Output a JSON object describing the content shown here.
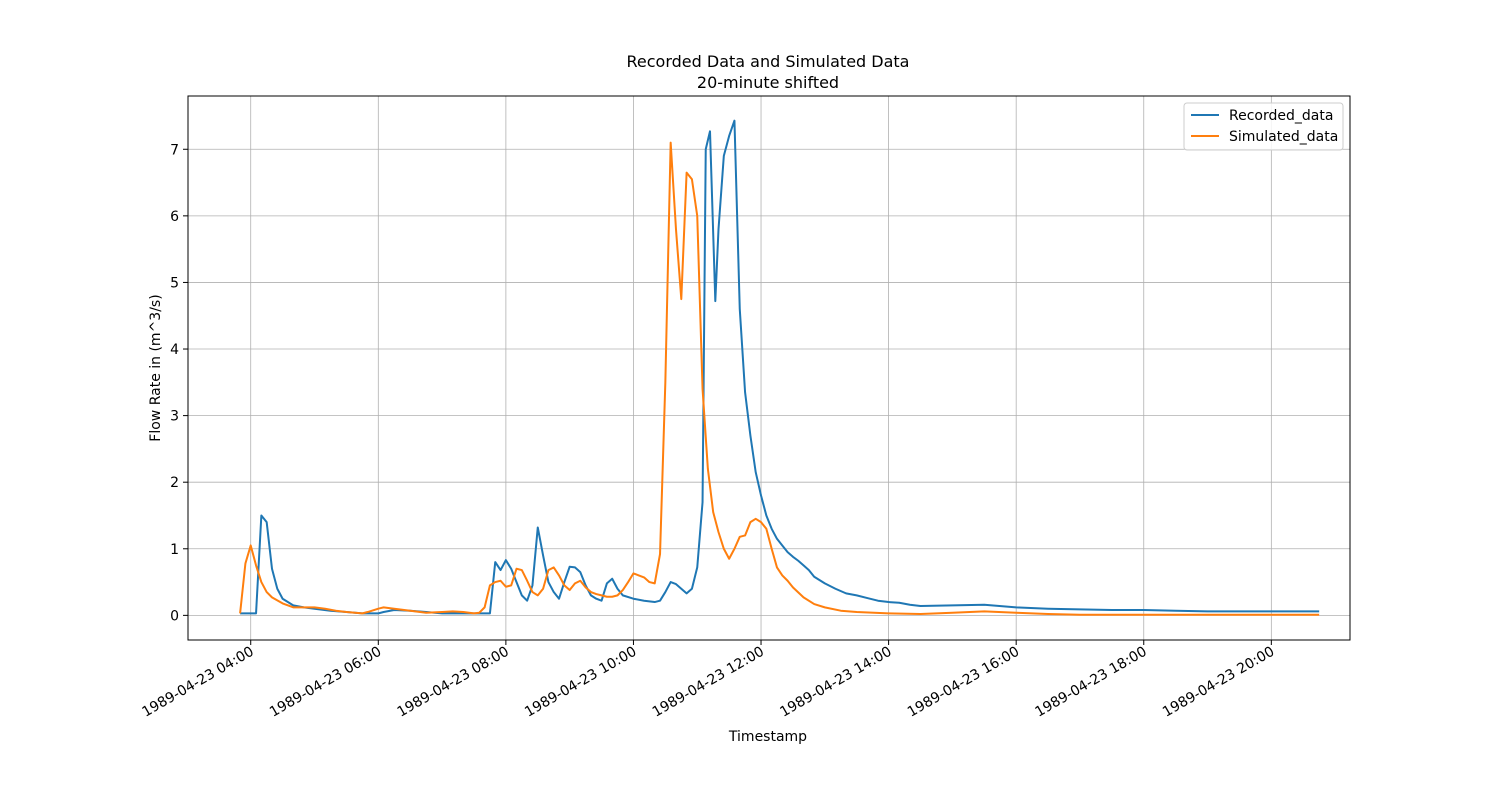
{
  "chart_data": {
    "type": "line",
    "title": "Recorded Data and Simulated Data",
    "subtitle": "20-minute shifted",
    "xlabel": "Timestamp",
    "ylabel": "Flow Rate in (m^3/s)",
    "xlim": [
      "1989-04-23 03:01",
      "1989-04-23 21:14"
    ],
    "ylim": [
      -0.37,
      7.8
    ],
    "x_ticks": [
      "1989-04-23 04:00",
      "1989-04-23 06:00",
      "1989-04-23 08:00",
      "1989-04-23 10:00",
      "1989-04-23 12:00",
      "1989-04-23 14:00",
      "1989-04-23 16:00",
      "1989-04-23 18:00",
      "1989-04-23 20:00"
    ],
    "y_ticks": [
      0,
      1,
      2,
      3,
      4,
      5,
      6,
      7
    ],
    "grid": true,
    "legend_position": "top-right",
    "series": [
      {
        "name": "Recorded_data",
        "color": "#1f77b4",
        "points": [
          [
            "1989-04-23 03:50",
            0.03
          ],
          [
            "1989-04-23 04:05",
            0.03
          ],
          [
            "1989-04-23 04:10",
            1.5
          ],
          [
            "1989-04-23 04:15",
            1.4
          ],
          [
            "1989-04-23 04:20",
            0.7
          ],
          [
            "1989-04-23 04:25",
            0.4
          ],
          [
            "1989-04-23 04:30",
            0.25
          ],
          [
            "1989-04-23 04:40",
            0.15
          ],
          [
            "1989-04-23 04:50",
            0.12
          ],
          [
            "1989-04-23 05:00",
            0.1
          ],
          [
            "1989-04-23 05:15",
            0.07
          ],
          [
            "1989-04-23 05:30",
            0.05
          ],
          [
            "1989-04-23 05:45",
            0.03
          ],
          [
            "1989-04-23 06:00",
            0.03
          ],
          [
            "1989-04-23 06:05",
            0.05
          ],
          [
            "1989-04-23 06:15",
            0.08
          ],
          [
            "1989-04-23 06:30",
            0.07
          ],
          [
            "1989-04-23 06:45",
            0.05
          ],
          [
            "1989-04-23 07:00",
            0.03
          ],
          [
            "1989-04-23 07:45",
            0.03
          ],
          [
            "1989-04-23 07:50",
            0.8
          ],
          [
            "1989-04-23 07:55",
            0.68
          ],
          [
            "1989-04-23 08:00",
            0.83
          ],
          [
            "1989-04-23 08:05",
            0.7
          ],
          [
            "1989-04-23 08:10",
            0.5
          ],
          [
            "1989-04-23 08:15",
            0.3
          ],
          [
            "1989-04-23 08:20",
            0.22
          ],
          [
            "1989-04-23 08:25",
            0.45
          ],
          [
            "1989-04-23 08:30",
            1.32
          ],
          [
            "1989-04-23 08:35",
            0.9
          ],
          [
            "1989-04-23 08:40",
            0.5
          ],
          [
            "1989-04-23 08:45",
            0.35
          ],
          [
            "1989-04-23 08:50",
            0.25
          ],
          [
            "1989-04-23 08:55",
            0.5
          ],
          [
            "1989-04-23 09:00",
            0.73
          ],
          [
            "1989-04-23 09:05",
            0.72
          ],
          [
            "1989-04-23 09:10",
            0.65
          ],
          [
            "1989-04-23 09:15",
            0.45
          ],
          [
            "1989-04-23 09:20",
            0.3
          ],
          [
            "1989-04-23 09:25",
            0.25
          ],
          [
            "1989-04-23 09:30",
            0.22
          ],
          [
            "1989-04-23 09:35",
            0.48
          ],
          [
            "1989-04-23 09:40",
            0.55
          ],
          [
            "1989-04-23 09:45",
            0.4
          ],
          [
            "1989-04-23 09:50",
            0.3
          ],
          [
            "1989-04-23 10:00",
            0.25
          ],
          [
            "1989-04-23 10:10",
            0.22
          ],
          [
            "1989-04-23 10:20",
            0.2
          ],
          [
            "1989-04-23 10:25",
            0.22
          ],
          [
            "1989-04-23 10:30",
            0.35
          ],
          [
            "1989-04-23 10:35",
            0.5
          ],
          [
            "1989-04-23 10:40",
            0.47
          ],
          [
            "1989-04-23 10:45",
            0.4
          ],
          [
            "1989-04-23 10:50",
            0.33
          ],
          [
            "1989-04-23 10:55",
            0.4
          ],
          [
            "1989-04-23 11:00",
            0.72
          ],
          [
            "1989-04-23 11:05",
            1.7
          ],
          [
            "1989-04-23 11:08",
            7.0
          ],
          [
            "1989-04-23 11:12",
            7.27
          ],
          [
            "1989-04-23 11:17",
            4.72
          ],
          [
            "1989-04-23 11:20",
            5.8
          ],
          [
            "1989-04-23 11:25",
            6.9
          ],
          [
            "1989-04-23 11:30",
            7.2
          ],
          [
            "1989-04-23 11:35",
            7.43
          ],
          [
            "1989-04-23 11:40",
            4.6
          ],
          [
            "1989-04-23 11:45",
            3.35
          ],
          [
            "1989-04-23 11:50",
            2.7
          ],
          [
            "1989-04-23 11:55",
            2.15
          ],
          [
            "1989-04-23 12:00",
            1.8
          ],
          [
            "1989-04-23 12:05",
            1.5
          ],
          [
            "1989-04-23 12:10",
            1.3
          ],
          [
            "1989-04-23 12:15",
            1.15
          ],
          [
            "1989-04-23 12:20",
            1.05
          ],
          [
            "1989-04-23 12:25",
            0.95
          ],
          [
            "1989-04-23 12:30",
            0.88
          ],
          [
            "1989-04-23 12:35",
            0.82
          ],
          [
            "1989-04-23 12:40",
            0.75
          ],
          [
            "1989-04-23 12:45",
            0.68
          ],
          [
            "1989-04-23 12:50",
            0.58
          ],
          [
            "1989-04-23 13:00",
            0.48
          ],
          [
            "1989-04-23 13:10",
            0.4
          ],
          [
            "1989-04-23 13:20",
            0.33
          ],
          [
            "1989-04-23 13:30",
            0.3
          ],
          [
            "1989-04-23 13:40",
            0.26
          ],
          [
            "1989-04-23 13:50",
            0.22
          ],
          [
            "1989-04-23 14:00",
            0.2
          ],
          [
            "1989-04-23 14:10",
            0.19
          ],
          [
            "1989-04-23 14:20",
            0.16
          ],
          [
            "1989-04-23 14:30",
            0.14
          ],
          [
            "1989-04-23 15:00",
            0.15
          ],
          [
            "1989-04-23 15:30",
            0.16
          ],
          [
            "1989-04-23 16:00",
            0.12
          ],
          [
            "1989-04-23 16:30",
            0.1
          ],
          [
            "1989-04-23 17:00",
            0.09
          ],
          [
            "1989-04-23 17:30",
            0.08
          ],
          [
            "1989-04-23 18:00",
            0.08
          ],
          [
            "1989-04-23 18:30",
            0.07
          ],
          [
            "1989-04-23 19:00",
            0.06
          ],
          [
            "1989-04-23 20:00",
            0.06
          ],
          [
            "1989-04-23 20:45",
            0.06
          ]
        ]
      },
      {
        "name": "Simulated_data",
        "color": "#ff7f0e",
        "points": [
          [
            "1989-04-23 03:50",
            0.03
          ],
          [
            "1989-04-23 03:55",
            0.78
          ],
          [
            "1989-04-23 04:00",
            1.05
          ],
          [
            "1989-04-23 04:05",
            0.75
          ],
          [
            "1989-04-23 04:10",
            0.5
          ],
          [
            "1989-04-23 04:15",
            0.35
          ],
          [
            "1989-04-23 04:20",
            0.27
          ],
          [
            "1989-04-23 04:30",
            0.18
          ],
          [
            "1989-04-23 04:40",
            0.12
          ],
          [
            "1989-04-23 04:50",
            0.12
          ],
          [
            "1989-04-23 05:00",
            0.12
          ],
          [
            "1989-04-23 05:10",
            0.1
          ],
          [
            "1989-04-23 05:20",
            0.07
          ],
          [
            "1989-04-23 05:30",
            0.05
          ],
          [
            "1989-04-23 05:45",
            0.03
          ],
          [
            "1989-04-23 05:50",
            0.05
          ],
          [
            "1989-04-23 06:00",
            0.1
          ],
          [
            "1989-04-23 06:05",
            0.12
          ],
          [
            "1989-04-23 06:15",
            0.1
          ],
          [
            "1989-04-23 06:30",
            0.07
          ],
          [
            "1989-04-23 06:45",
            0.04
          ],
          [
            "1989-04-23 07:00",
            0.05
          ],
          [
            "1989-04-23 07:10",
            0.06
          ],
          [
            "1989-04-23 07:20",
            0.05
          ],
          [
            "1989-04-23 07:30",
            0.03
          ],
          [
            "1989-04-23 07:35",
            0.04
          ],
          [
            "1989-04-23 07:40",
            0.12
          ],
          [
            "1989-04-23 07:45",
            0.45
          ],
          [
            "1989-04-23 07:50",
            0.5
          ],
          [
            "1989-04-23 07:55",
            0.52
          ],
          [
            "1989-04-23 08:00",
            0.43
          ],
          [
            "1989-04-23 08:05",
            0.45
          ],
          [
            "1989-04-23 08:10",
            0.7
          ],
          [
            "1989-04-23 08:15",
            0.68
          ],
          [
            "1989-04-23 08:20",
            0.52
          ],
          [
            "1989-04-23 08:25",
            0.35
          ],
          [
            "1989-04-23 08:30",
            0.3
          ],
          [
            "1989-04-23 08:35",
            0.4
          ],
          [
            "1989-04-23 08:40",
            0.68
          ],
          [
            "1989-04-23 08:45",
            0.72
          ],
          [
            "1989-04-23 08:50",
            0.6
          ],
          [
            "1989-04-23 08:55",
            0.45
          ],
          [
            "1989-04-23 09:00",
            0.38
          ],
          [
            "1989-04-23 09:05",
            0.48
          ],
          [
            "1989-04-23 09:10",
            0.52
          ],
          [
            "1989-04-23 09:15",
            0.42
          ],
          [
            "1989-04-23 09:20",
            0.35
          ],
          [
            "1989-04-23 09:25",
            0.32
          ],
          [
            "1989-04-23 09:30",
            0.3
          ],
          [
            "1989-04-23 09:35",
            0.28
          ],
          [
            "1989-04-23 09:40",
            0.28
          ],
          [
            "1989-04-23 09:45",
            0.3
          ],
          [
            "1989-04-23 09:50",
            0.38
          ],
          [
            "1989-04-23 09:55",
            0.5
          ],
          [
            "1989-04-23 10:00",
            0.63
          ],
          [
            "1989-04-23 10:05",
            0.6
          ],
          [
            "1989-04-23 10:10",
            0.57
          ],
          [
            "1989-04-23 10:15",
            0.5
          ],
          [
            "1989-04-23 10:20",
            0.48
          ],
          [
            "1989-04-23 10:25",
            0.92
          ],
          [
            "1989-04-23 10:30",
            3.5
          ],
          [
            "1989-04-23 10:35",
            7.1
          ],
          [
            "1989-04-23 10:40",
            5.8
          ],
          [
            "1989-04-23 10:45",
            4.75
          ],
          [
            "1989-04-23 10:50",
            6.65
          ],
          [
            "1989-04-23 10:55",
            6.55
          ],
          [
            "1989-04-23 11:00",
            6.0
          ],
          [
            "1989-04-23 11:05",
            3.4
          ],
          [
            "1989-04-23 11:10",
            2.2
          ],
          [
            "1989-04-23 11:15",
            1.55
          ],
          [
            "1989-04-23 11:20",
            1.25
          ],
          [
            "1989-04-23 11:25",
            1.0
          ],
          [
            "1989-04-23 11:30",
            0.85
          ],
          [
            "1989-04-23 11:35",
            1.0
          ],
          [
            "1989-04-23 11:40",
            1.18
          ],
          [
            "1989-04-23 11:45",
            1.2
          ],
          [
            "1989-04-23 11:50",
            1.4
          ],
          [
            "1989-04-23 11:55",
            1.45
          ],
          [
            "1989-04-23 12:00",
            1.4
          ],
          [
            "1989-04-23 12:05",
            1.3
          ],
          [
            "1989-04-23 12:10",
            1.0
          ],
          [
            "1989-04-23 12:15",
            0.72
          ],
          [
            "1989-04-23 12:20",
            0.6
          ],
          [
            "1989-04-23 12:25",
            0.52
          ],
          [
            "1989-04-23 12:30",
            0.42
          ],
          [
            "1989-04-23 12:40",
            0.27
          ],
          [
            "1989-04-23 12:50",
            0.17
          ],
          [
            "1989-04-23 13:00",
            0.12
          ],
          [
            "1989-04-23 13:15",
            0.07
          ],
          [
            "1989-04-23 13:30",
            0.05
          ],
          [
            "1989-04-23 14:00",
            0.03
          ],
          [
            "1989-04-23 14:30",
            0.02
          ],
          [
            "1989-04-23 15:00",
            0.04
          ],
          [
            "1989-04-23 15:30",
            0.06
          ],
          [
            "1989-04-23 16:00",
            0.04
          ],
          [
            "1989-04-23 16:30",
            0.02
          ],
          [
            "1989-04-23 17:00",
            0.01
          ],
          [
            "1989-04-23 18:00",
            0.01
          ],
          [
            "1989-04-23 20:45",
            0.01
          ]
        ]
      }
    ]
  }
}
